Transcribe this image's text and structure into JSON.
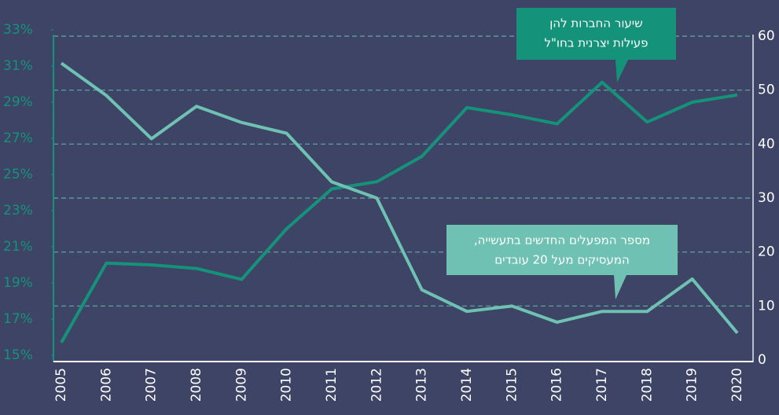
{
  "chart_data": {
    "type": "line",
    "categories": [
      "2005",
      "2006",
      "2007",
      "2008",
      "2009",
      "2010",
      "2011",
      "2012",
      "2013",
      "2014",
      "2015",
      "2016",
      "2017",
      "2018",
      "2019",
      "2020"
    ],
    "series": [
      {
        "name": "שיעור החברות להן פעילות יצרנית בחו\"ל",
        "color": "#15937a",
        "axis": "y",
        "values": [
          15.7,
          20.1,
          20.0,
          19.8,
          19.2,
          22.0,
          24.2,
          24.6,
          26.0,
          28.7,
          28.3,
          27.8,
          30.1,
          27.9,
          29.0,
          29.4
        ]
      },
      {
        "name": "מספר המפעלים החדשים בתעשייה, המעסיקים מעל 20 עובדים",
        "color": "#6fc2b3",
        "axis": "y2",
        "values": [
          55,
          49,
          41,
          47,
          44,
          42,
          33,
          30,
          13,
          9,
          10,
          7,
          9,
          9,
          15,
          5
        ]
      }
    ],
    "annotations": [
      {
        "lines": [
          "שיעור החברות להן",
          "פעילות יצרנית בחו\"ל"
        ],
        "color": "#15937a"
      },
      {
        "lines": [
          "מספר המפעלים החדשים בתעשייה,",
          "המעסיקים מעל 20 עובדים"
        ],
        "color": "#6fc2b3"
      }
    ],
    "ylim": [
      15,
      33
    ],
    "yticks": [
      {
        "value": 15,
        "label": "15%"
      },
      {
        "value": 17,
        "label": "17%"
      },
      {
        "value": 19,
        "label": "19%"
      },
      {
        "value": 21,
        "label": "21%"
      },
      {
        "value": 23,
        "label": "23%"
      },
      {
        "value": 25,
        "label": "25%"
      },
      {
        "value": 27,
        "label": "27%"
      },
      {
        "value": 29,
        "label": "29%"
      },
      {
        "value": 31,
        "label": "31%"
      },
      {
        "value": 33,
        "label": "33%"
      }
    ],
    "y2lim": [
      0,
      60
    ],
    "y2ticks": [
      0,
      10,
      20,
      30,
      40,
      50,
      60
    ],
    "grid": true
  }
}
